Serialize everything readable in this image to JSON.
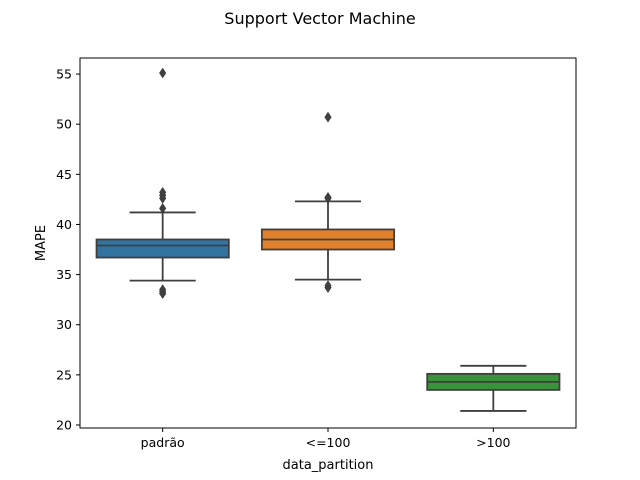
{
  "chart_data": {
    "type": "box",
    "title": "Support Vector Machine",
    "xlabel": "data_partition",
    "ylabel": "MAPE",
    "ylim": [
      19.7,
      56.6
    ],
    "yticks": [
      20,
      25,
      30,
      35,
      40,
      45,
      50,
      55
    ],
    "grid": false,
    "categories": [
      "padrão",
      "<=100",
      ">100"
    ],
    "colors": [
      "#3274a1",
      "#e1812c",
      "#3a923a"
    ],
    "boxes": [
      {
        "category": "padrão",
        "whisker_low": 34.4,
        "q1": 36.7,
        "median": 37.9,
        "q3": 38.5,
        "whisker_high": 41.2,
        "outliers": [
          55.1,
          43.2,
          42.9,
          42.6,
          41.6,
          33.5,
          33.3,
          33.1
        ]
      },
      {
        "category": "<=100",
        "whisker_low": 34.5,
        "q1": 37.5,
        "median": 38.5,
        "q3": 39.5,
        "whisker_high": 42.3,
        "outliers": [
          50.7,
          42.7,
          42.6,
          33.9,
          33.7
        ]
      },
      {
        "category": ">100",
        "whisker_low": 21.4,
        "q1": 23.5,
        "median": 24.3,
        "q3": 25.1,
        "whisker_high": 25.9,
        "outliers": []
      }
    ]
  }
}
